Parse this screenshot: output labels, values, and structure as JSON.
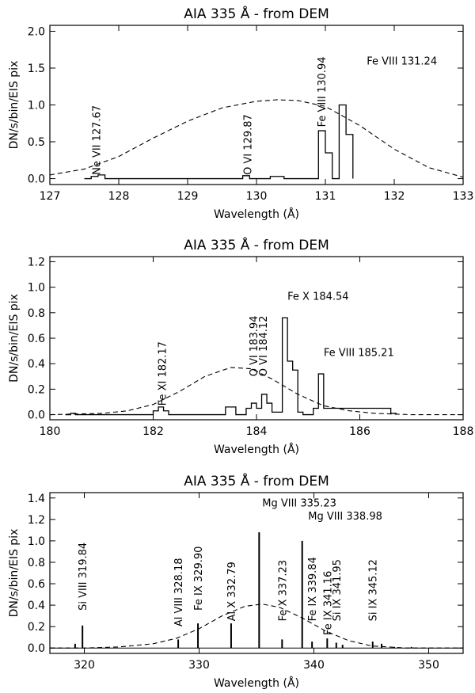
{
  "chart_data": [
    {
      "type": "line",
      "title": "AIA 335 Å - from DEM",
      "xlabel": "Wavelength (Å)",
      "ylabel": "DN/s/bin/EIS pix",
      "xlim": [
        127,
        133
      ],
      "ylim": [
        -0.08,
        2.08
      ],
      "xticks": [
        127,
        128,
        129,
        130,
        131,
        132,
        133
      ],
      "yticks": [
        0.0,
        0.5,
        1.0,
        1.5,
        2.0
      ],
      "ytick_decimals": 1,
      "series": [
        {
          "style": "histogram",
          "x": [
            127.5,
            127.6,
            127.7,
            127.8,
            128.5,
            129.7,
            129.8,
            129.9,
            130.1,
            130.2,
            130.3,
            130.4,
            130.5,
            130.9,
            131.0,
            131.1,
            131.2,
            131.3,
            131.4
          ],
          "y": [
            0.0,
            0.03,
            0.05,
            0.0,
            0.0,
            0.0,
            0.04,
            0.0,
            0.0,
            0.03,
            0.03,
            0.0,
            0.0,
            0.65,
            0.35,
            0.0,
            1.0,
            0.6,
            0.0
          ]
        },
        {
          "style": "dashed",
          "x": [
            127.0,
            127.5,
            128.0,
            128.5,
            129.0,
            129.5,
            130.0,
            130.3,
            130.6,
            131.0,
            131.5,
            132.0,
            132.5,
            133.0
          ],
          "y": [
            0.05,
            0.13,
            0.3,
            0.55,
            0.78,
            0.96,
            1.05,
            1.07,
            1.06,
            0.98,
            0.72,
            0.4,
            0.15,
            0.02
          ]
        }
      ],
      "annotations": [
        {
          "text": "Ne VII 127.67",
          "x": 127.67,
          "y": 0.05,
          "rotate": true
        },
        {
          "text": "O VI 129.87",
          "x": 129.87,
          "y": 0.05,
          "rotate": true
        },
        {
          "text": "Fe VIII 130.94",
          "x": 130.94,
          "y": 0.7,
          "rotate": true
        },
        {
          "text": "Fe VIII 131.24",
          "x": 131.6,
          "y": 1.55,
          "rotate": false
        }
      ]
    },
    {
      "type": "line",
      "title": "AIA 335 Å - from DEM",
      "xlabel": "Wavelength (Å)",
      "ylabel": "DN/s/bin/EIS pix",
      "xlim": [
        180,
        188
      ],
      "ylim": [
        -0.04,
        1.24
      ],
      "xticks": [
        180,
        182,
        184,
        186,
        188
      ],
      "yticks": [
        0.0,
        0.2,
        0.4,
        0.6,
        0.8,
        1.0,
        1.2
      ],
      "ytick_decimals": 1,
      "series": [
        {
          "style": "histogram",
          "x": [
            180.3,
            180.4,
            180.5,
            182.0,
            182.1,
            182.2,
            182.3,
            183.4,
            183.5,
            183.6,
            183.8,
            183.9,
            184.0,
            184.1,
            184.2,
            184.3,
            184.5,
            184.6,
            184.7,
            184.8,
            184.9,
            185.1,
            185.2,
            185.3,
            186.6,
            186.7
          ],
          "y": [
            0.0,
            0.01,
            0.0,
            0.03,
            0.06,
            0.03,
            0.0,
            0.06,
            0.06,
            0.0,
            0.05,
            0.09,
            0.05,
            0.16,
            0.09,
            0.02,
            0.76,
            0.42,
            0.35,
            0.02,
            0.0,
            0.05,
            0.32,
            0.05,
            0.01,
            0.0
          ]
        },
        {
          "style": "dashed",
          "x": [
            180.0,
            181.0,
            181.5,
            182.0,
            182.5,
            183.0,
            183.5,
            183.9,
            184.3,
            184.8,
            185.3,
            185.8,
            186.3,
            187.0,
            188.0
          ],
          "y": [
            0.0,
            0.01,
            0.03,
            0.08,
            0.18,
            0.3,
            0.37,
            0.36,
            0.28,
            0.16,
            0.07,
            0.03,
            0.01,
            0.0,
            0.0
          ]
        }
      ],
      "annotations": [
        {
          "text": "Fe XI 182.17",
          "x": 182.17,
          "y": 0.07,
          "rotate": true
        },
        {
          "text": "O VI 183.94",
          "x": 183.94,
          "y": 0.3,
          "rotate": true
        },
        {
          "text": "O VI 184.12",
          "x": 184.12,
          "y": 0.3,
          "rotate": true
        },
        {
          "text": "Fe X 184.54",
          "x": 184.6,
          "y": 0.9,
          "rotate": false
        },
        {
          "text": "Fe VIII 185.21",
          "x": 185.3,
          "y": 0.46,
          "rotate": false
        }
      ]
    },
    {
      "type": "line",
      "title": "AIA 335 Å - from DEM",
      "xlabel": "Wavelength (Å)",
      "ylabel": "DN/s/bin/EIS pix",
      "xlim": [
        317,
        353
      ],
      "ylim": [
        -0.05,
        1.45
      ],
      "xticks": [
        320,
        330,
        340,
        350
      ],
      "yticks": [
        0.0,
        0.2,
        0.4,
        0.6,
        0.8,
        1.0,
        1.2,
        1.4
      ],
      "ytick_decimals": 1,
      "series": [
        {
          "style": "spikes",
          "x": [
            319.2,
            319.84,
            328.18,
            329.9,
            332.79,
            335.23,
            337.23,
            338.98,
            339.84,
            341.16,
            341.95,
            342.5,
            345.12,
            345.9,
            347.0,
            348.5
          ],
          "y": [
            0.04,
            0.21,
            0.08,
            0.23,
            0.23,
            1.08,
            0.08,
            1.0,
            0.06,
            0.09,
            0.05,
            0.03,
            0.06,
            0.04,
            0.01,
            0.01
          ]
        },
        {
          "style": "dashed",
          "x": [
            317.0,
            320.0,
            323.0,
            326.0,
            328.0,
            330.0,
            332.0,
            334.0,
            335.5,
            337.0,
            339.0,
            341.0,
            343.0,
            345.0,
            348.0,
            353.0
          ],
          "y": [
            0.0,
            0.0,
            0.01,
            0.04,
            0.09,
            0.18,
            0.3,
            0.39,
            0.41,
            0.38,
            0.28,
            0.16,
            0.07,
            0.02,
            0.0,
            0.0
          ]
        }
      ],
      "annotations": [
        {
          "text": "Si VIII 319.84",
          "x": 319.84,
          "y": 0.35,
          "rotate": true
        },
        {
          "text": "Al VIII 328.18",
          "x": 328.18,
          "y": 0.2,
          "rotate": true
        },
        {
          "text": "Fe IX 329.90",
          "x": 329.9,
          "y": 0.35,
          "rotate": true
        },
        {
          "text": "Al X 332.79",
          "x": 332.79,
          "y": 0.25,
          "rotate": true
        },
        {
          "text": "Fe X 337.23",
          "x": 337.23,
          "y": 0.25,
          "rotate": true
        },
        {
          "text": "Fe IX 339.84",
          "x": 339.84,
          "y": 0.25,
          "rotate": true
        },
        {
          "text": "Fe IX 341.16",
          "x": 341.16,
          "y": 0.12,
          "rotate": true
        },
        {
          "text": "Si IX 341.95",
          "x": 341.95,
          "y": 0.25,
          "rotate": true
        },
        {
          "text": "Si IX 345.12",
          "x": 345.12,
          "y": 0.25,
          "rotate": true
        },
        {
          "text": "Mg VIII 335.23",
          "x": 335.5,
          "y": 1.32,
          "rotate": false
        },
        {
          "text": "Mg VIII 338.98",
          "x": 339.5,
          "y": 1.2,
          "rotate": false
        }
      ]
    }
  ]
}
